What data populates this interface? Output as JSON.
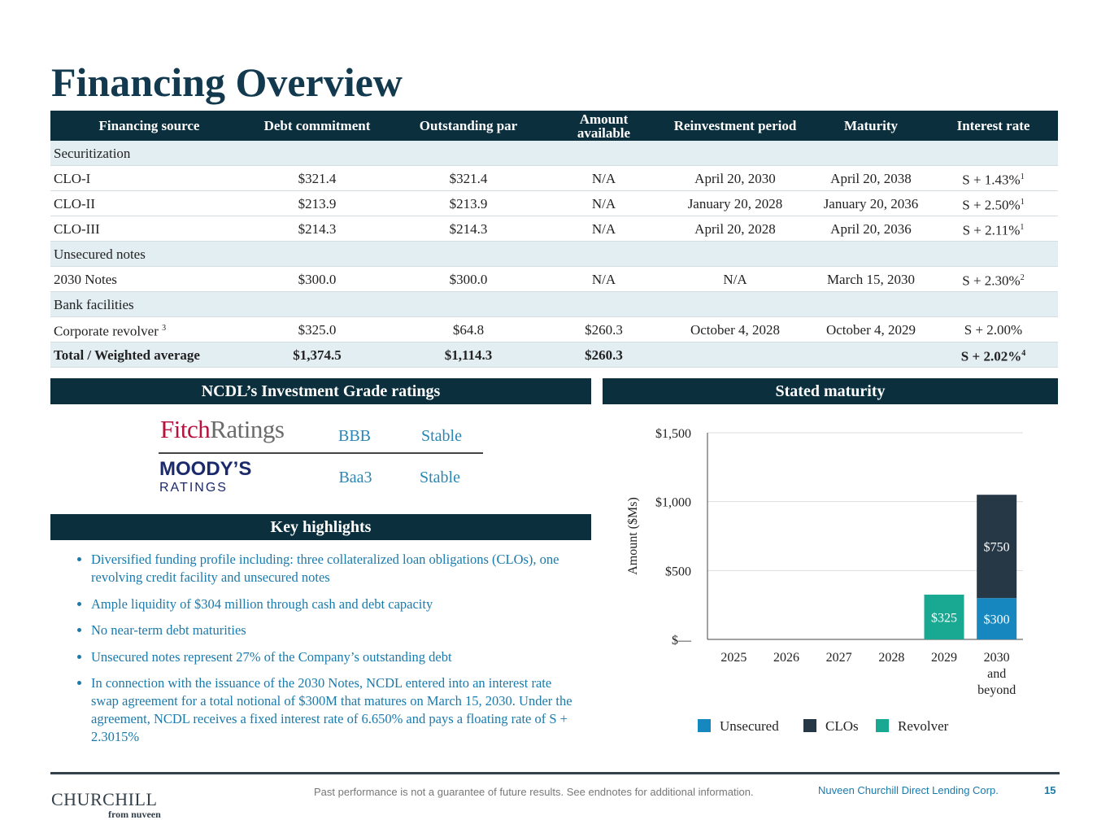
{
  "title": "Financing Overview",
  "table": {
    "headers": [
      "Financing source",
      "Debt commitment",
      "Outstanding par",
      "Amount available",
      "Reinvestment period",
      "Maturity",
      "Interest rate"
    ],
    "rows": [
      {
        "section": "Securitization"
      },
      {
        "cells": [
          "CLO-I",
          "$321.4",
          "$321.4",
          "N/A",
          "April 20, 2030",
          "April 20, 2038",
          {
            "text": "S + 1.43%",
            "sup": "1"
          }
        ]
      },
      {
        "cells": [
          "CLO-II",
          "$213.9",
          "$213.9",
          "N/A",
          "January 20, 2028",
          "January 20, 2036",
          {
            "text": "S + 2.50%",
            "sup": "1"
          }
        ]
      },
      {
        "cells": [
          "CLO-III",
          "$214.3",
          "$214.3",
          "N/A",
          "April 20, 2028",
          "April 20, 2036",
          {
            "text": "S + 2.11%",
            "sup": "1"
          }
        ]
      },
      {
        "section": "Unsecured notes"
      },
      {
        "cells": [
          "2030 Notes",
          "$300.0",
          "$300.0",
          "N/A",
          "N/A",
          "March 15, 2030",
          {
            "text": "S + 2.30%",
            "sup": "2"
          }
        ]
      },
      {
        "section": "Bank facilities"
      },
      {
        "cells": [
          {
            "text": "Corporate revolver ",
            "sup": "3"
          },
          "$325.0",
          "$64.8",
          "$260.3",
          "October 4, 2028",
          "October 4, 2029",
          "S + 2.00%"
        ]
      },
      {
        "cells": [
          "Total / Weighted average",
          "$1,374.5",
          "$1,114.3",
          "$260.3",
          null,
          null,
          {
            "text": "S + 2.02%",
            "sup": "4"
          }
        ]
      }
    ]
  },
  "ratings": {
    "heading": "NCDL’s Investment Grade ratings",
    "fitch_logo": [
      "Fitch",
      "Ratings"
    ],
    "moodys_logo": [
      "MOODY’S",
      "RATINGS"
    ],
    "fitch": {
      "rating": "BBB",
      "outlook": "Stable"
    },
    "moodys": {
      "rating": "Baa3",
      "outlook": "Stable"
    }
  },
  "highlights": {
    "heading": "Key highlights",
    "bullets": [
      "Diversified funding profile including: three collateralized loan obligations (CLOs), one revolving credit facility and unsecured notes",
      "Ample liquidity of $304 million through cash and debt capacity",
      "No near-term debt maturities",
      "Unsecured notes represent 27% of the Company’s outstanding debt",
      "In connection with the issuance of the 2030 Notes, NCDL entered into an interest rate swap agreement for a total notional of $300M that matures on March 15, 2030. Under the agreement, NCDL receives a fixed interest rate of 6.650% and pays a floating rate of  S + 2.3015%"
    ]
  },
  "chart_data": {
    "type": "stacked-bar",
    "title": "Stated maturity",
    "y_label": "Amount ($Ms)",
    "categories": [
      "2025",
      "2026",
      "2027",
      "2028",
      "2029",
      "2030 and beyond"
    ],
    "ylim": [
      0,
      1500
    ],
    "yticks": [
      {
        "value": 0,
        "label": "$—"
      },
      {
        "value": 500,
        "label": "$500"
      },
      {
        "value": 1000,
        "label": "$1,000"
      },
      {
        "value": 1500,
        "label": "$1,500"
      }
    ],
    "grid": true,
    "series": [
      {
        "name": "Unsecured",
        "color": "#1787bf",
        "values": [
          0,
          0,
          0,
          0,
          0,
          300
        ],
        "value_labels": [
          null,
          null,
          null,
          null,
          null,
          "$300"
        ]
      },
      {
        "name": "CLOs",
        "color": "#263746",
        "values": [
          0,
          0,
          0,
          0,
          0,
          750
        ],
        "value_labels": [
          null,
          null,
          null,
          null,
          null,
          "$750"
        ]
      },
      {
        "name": "Revolver",
        "color": "#19a892",
        "values": [
          0,
          0,
          0,
          0,
          325,
          0
        ],
        "value_labels": [
          null,
          null,
          null,
          null,
          "$325",
          null
        ]
      }
    ]
  },
  "footer": {
    "logo": "CHURCHILL",
    "logo_sub": "from nuveen",
    "disclaimer": "Past performance is not a guarantee of future results. See endnotes for additional information.",
    "company": "Nuveen Churchill Direct Lending Corp.",
    "page": "15"
  }
}
